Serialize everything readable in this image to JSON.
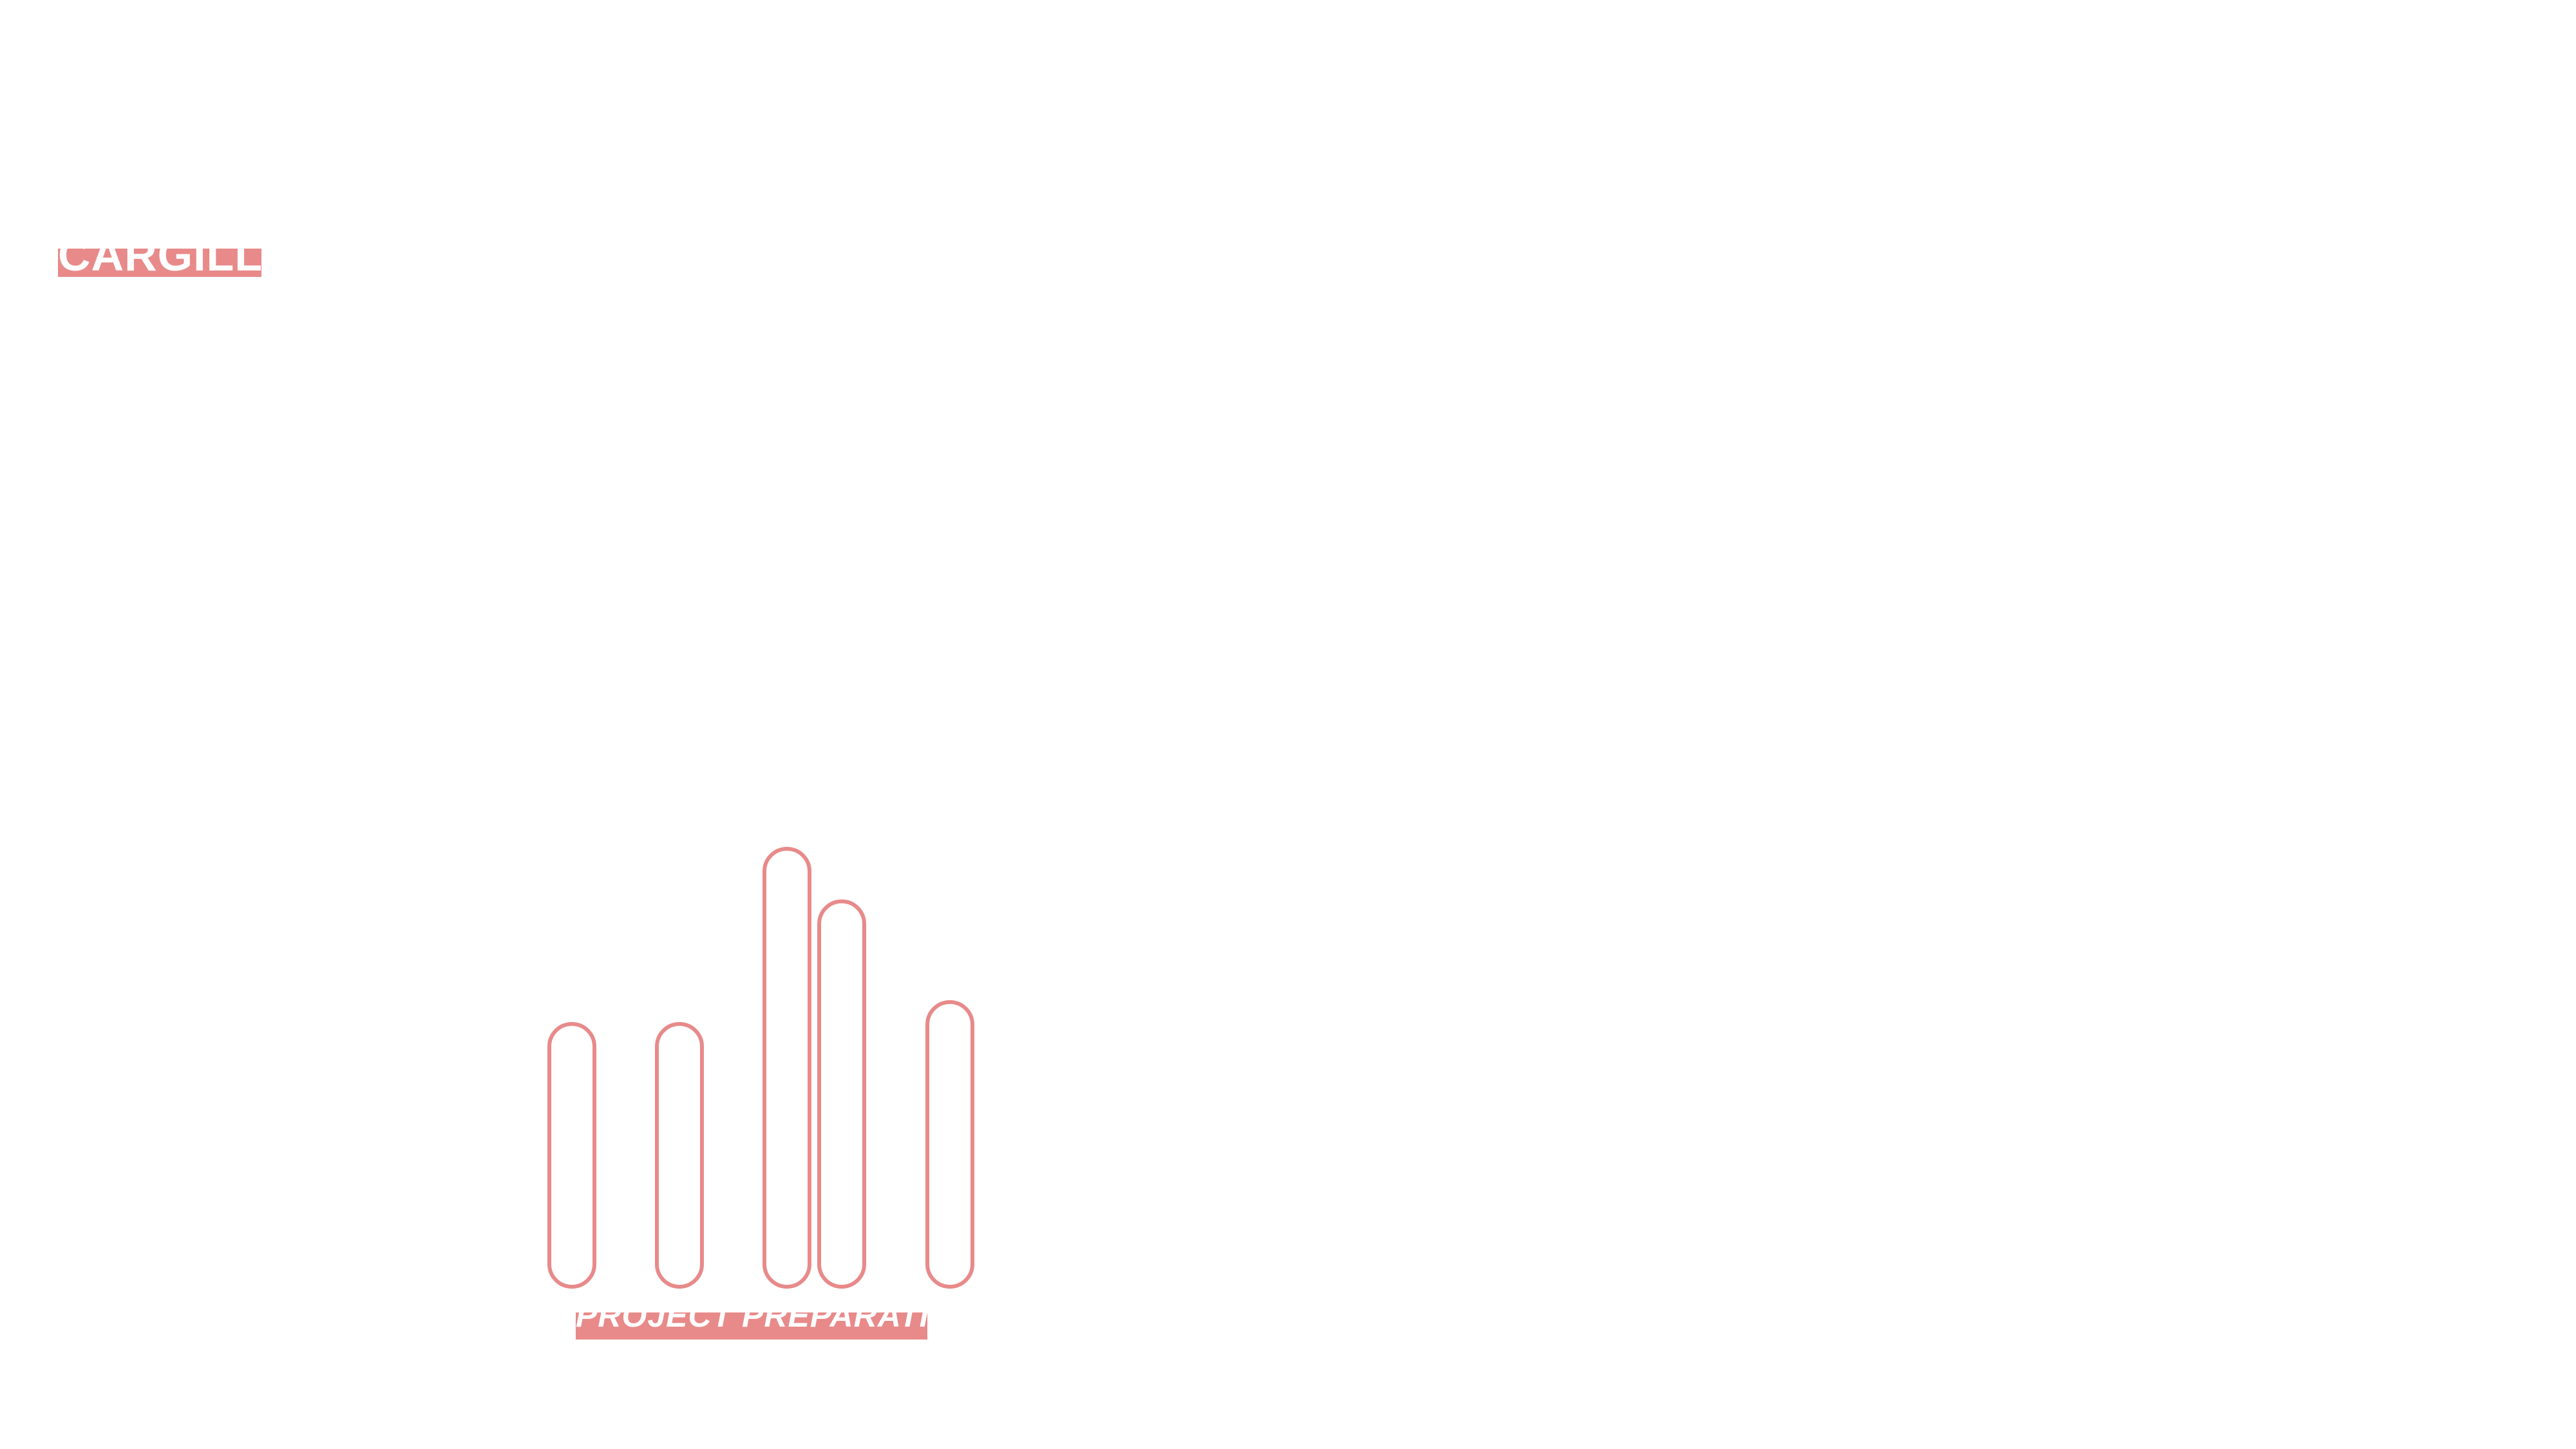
{
  "company_label": "CARGILL",
  "stage_label": "PROJECT PREPARATION",
  "graphic": {
    "icon": "rounded-bars-icon",
    "pill_heights": [
      0.6,
      0.6,
      1.0,
      0.88,
      0.65
    ]
  },
  "colors": {
    "accent": "#e88a8a",
    "label_text": "#ffffff",
    "background": "#ffffff"
  }
}
